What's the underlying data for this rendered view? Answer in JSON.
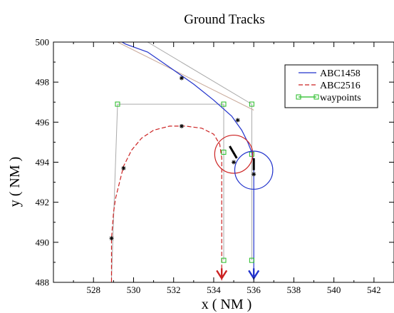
{
  "chart_data": {
    "type": "line",
    "title": "Ground Tracks",
    "xlabel": "x ( NM )",
    "ylabel": "y ( NM )",
    "xlim": [
      526,
      543
    ],
    "ylim": [
      488,
      500
    ],
    "xticks": [
      "528",
      "530",
      "532",
      "534",
      "536",
      "538",
      "540",
      "542"
    ],
    "yticks": [
      "488",
      "490",
      "492",
      "494",
      "496",
      "498",
      "500"
    ],
    "legend_position": "top-right",
    "colors": {
      "ABC1458": "#2233cc",
      "ABC2516": "#cc2222",
      "waypoints": "#22bb22",
      "waypoint_route": "#aaaaaa",
      "guide": "#c8a898"
    },
    "series": [
      {
        "name": "ABC1458",
        "style": "solid",
        "points": [
          [
            528.9,
            500.3
          ],
          [
            529.6,
            499.9
          ],
          [
            530.7,
            499.5
          ],
          [
            532.0,
            498.6
          ],
          [
            533.0,
            497.9
          ],
          [
            534.0,
            497.1
          ],
          [
            534.9,
            496.3
          ],
          [
            535.4,
            495.6
          ],
          [
            535.7,
            495.0
          ],
          [
            535.9,
            494.5
          ],
          [
            536.0,
            494.0
          ],
          [
            536.0,
            493.0
          ],
          [
            536.0,
            491.0
          ],
          [
            536.0,
            489.0
          ],
          [
            536.0,
            488.1
          ]
        ]
      },
      {
        "name": "ABC2516",
        "style": "dashed",
        "points": [
          [
            528.9,
            487.7
          ],
          [
            528.9,
            489.0
          ],
          [
            528.9,
            490.2
          ],
          [
            529.0,
            491.5
          ],
          [
            529.1,
            492.2
          ],
          [
            529.3,
            493.0
          ],
          [
            529.5,
            493.8
          ],
          [
            529.9,
            494.6
          ],
          [
            530.4,
            495.2
          ],
          [
            531.0,
            495.6
          ],
          [
            531.8,
            495.8
          ],
          [
            532.6,
            495.8
          ],
          [
            533.4,
            495.7
          ],
          [
            534.0,
            495.4
          ],
          [
            534.3,
            494.9
          ],
          [
            534.4,
            494.2
          ],
          [
            534.4,
            493.0
          ],
          [
            534.4,
            491.0
          ],
          [
            534.4,
            489.0
          ],
          [
            534.4,
            488.1
          ]
        ]
      }
    ],
    "waypoints": {
      "name": "waypoints",
      "points": [
        [
          529.2,
          496.9
        ],
        [
          534.5,
          496.9
        ],
        [
          535.9,
          496.9
        ],
        [
          534.5,
          494.5
        ],
        [
          535.9,
          494.4
        ],
        [
          534.5,
          489.1
        ],
        [
          535.9,
          489.1
        ]
      ]
    },
    "waypoint_routes": [
      [
        [
          528.9,
          488.2
        ],
        [
          529.2,
          496.9
        ],
        [
          534.5,
          496.9
        ],
        [
          534.5,
          489.1
        ]
      ],
      [
        [
          530.7,
          500.0
        ],
        [
          535.9,
          496.9
        ],
        [
          535.9,
          489.1
        ]
      ]
    ],
    "guide_line": [
      [
        529.2,
        500.0
      ],
      [
        536.0,
        496.6
      ]
    ],
    "markers": [
      [
        532.4,
        498.2
      ],
      [
        535.2,
        496.1
      ],
      [
        532.4,
        495.8
      ],
      [
        529.5,
        493.7
      ],
      [
        528.9,
        490.2
      ],
      [
        535.0,
        494.0
      ],
      [
        536.0,
        493.4
      ]
    ],
    "conflict_circles": [
      {
        "name": "ABC2516",
        "center": [
          535.0,
          494.4
        ],
        "radius_nm": 0.95
      },
      {
        "name": "ABC1458",
        "center": [
          536.0,
          493.6
        ],
        "radius_nm": 0.95
      }
    ],
    "heading_ticks": [
      {
        "name": "ABC2516",
        "points": [
          [
            534.8,
            494.8
          ],
          [
            535.15,
            494.2
          ]
        ]
      },
      {
        "name": "ABC1458",
        "points": [
          [
            536.0,
            494.2
          ],
          [
            536.0,
            493.6
          ]
        ]
      }
    ],
    "arrows": [
      {
        "name": "ABC2516",
        "tip": [
          534.4,
          488.2
        ]
      },
      {
        "name": "ABC1458",
        "tip": [
          536.0,
          488.2
        ]
      }
    ]
  }
}
